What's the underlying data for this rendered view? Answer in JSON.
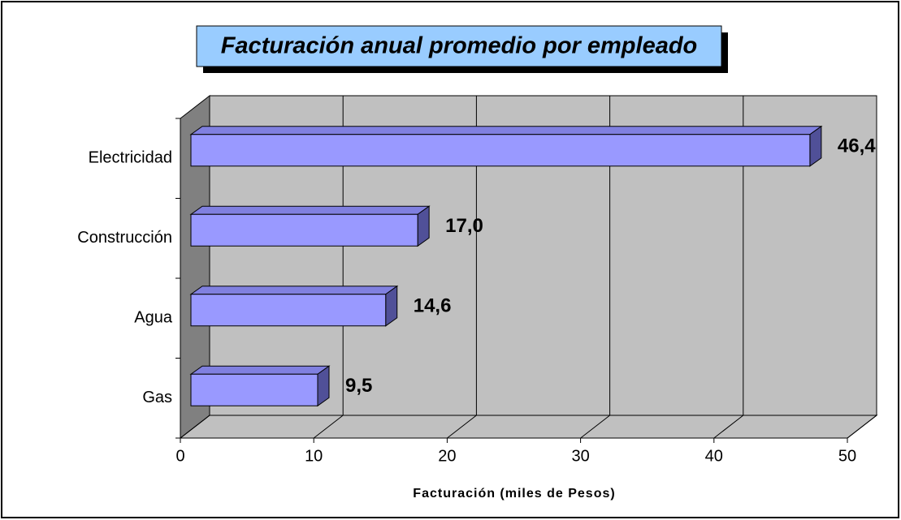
{
  "chart_data": {
    "type": "bar3d_horizontal",
    "title": "Facturación anual promedio por empleado",
    "x_label": "Facturación (miles de Pesos)",
    "categories": [
      "Electricidad",
      "Construcción",
      "Agua",
      "Gas"
    ],
    "values": [
      46.4,
      17.0,
      14.6,
      9.5
    ],
    "value_labels": [
      "46,4",
      "17,0",
      "14,6",
      "9,5"
    ],
    "color": "#9999ff",
    "xlim": [
      0,
      50
    ],
    "xticks": [
      0,
      10,
      20,
      30,
      40,
      50
    ],
    "grid": true
  }
}
